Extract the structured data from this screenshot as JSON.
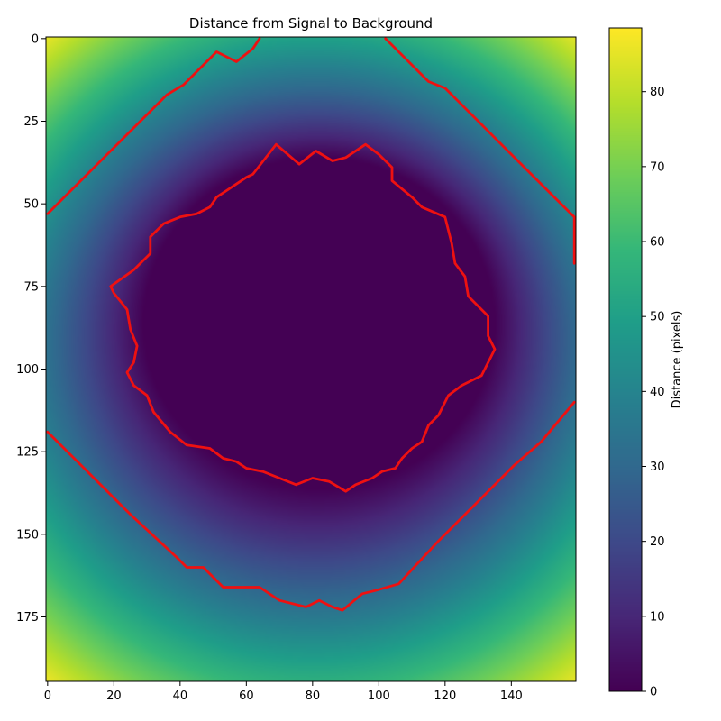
{
  "chart_data": {
    "type": "heatmap",
    "title": "Distance from Signal to Background",
    "xlabel": "",
    "ylabel": "",
    "xlim": [
      -0.5,
      159.5
    ],
    "ylim": [
      194.5,
      -0.5
    ],
    "image_shape": [
      195,
      160
    ],
    "x_ticks": [
      0,
      20,
      40,
      60,
      80,
      100,
      120,
      140
    ],
    "y_ticks": [
      0,
      25,
      50,
      75,
      100,
      125,
      150,
      175
    ],
    "grid": false,
    "colormap": "viridis",
    "colorbar": {
      "label": "Distance (pixels)",
      "range": [
        0,
        88.5
      ],
      "ticks": [
        0,
        10,
        20,
        30,
        40,
        50,
        60,
        70,
        80
      ]
    },
    "distance_field": {
      "inner_center": [
        82,
        86
      ],
      "inner_radius_x": 53,
      "inner_radius_y": 50,
      "inner_growth": 1.0,
      "outer_center": [
        80,
        97
      ],
      "outer_max": 88.5
    },
    "contour_color": "#ee1111",
    "contours": [
      {
        "name": "inner boundary",
        "points": [
          [
            69,
            32
          ],
          [
            76,
            38
          ],
          [
            81,
            34
          ],
          [
            86,
            37
          ],
          [
            90,
            36
          ],
          [
            96,
            32
          ],
          [
            100,
            35
          ],
          [
            104,
            39
          ],
          [
            104,
            43
          ],
          [
            110,
            48
          ],
          [
            113,
            51
          ],
          [
            120,
            54
          ],
          [
            122,
            62
          ],
          [
            123,
            68
          ],
          [
            126,
            72
          ],
          [
            127,
            78
          ],
          [
            133,
            84
          ],
          [
            133,
            90
          ],
          [
            135,
            94
          ],
          [
            131,
            102
          ],
          [
            125,
            105
          ],
          [
            121,
            108
          ],
          [
            118,
            114
          ],
          [
            115,
            117
          ],
          [
            113,
            122
          ],
          [
            110,
            124
          ],
          [
            107,
            127
          ],
          [
            105,
            130
          ],
          [
            101,
            131
          ],
          [
            98,
            133
          ],
          [
            93,
            135
          ],
          [
            90,
            137
          ],
          [
            85,
            134
          ],
          [
            80,
            133
          ],
          [
            75,
            135
          ],
          [
            70,
            133
          ],
          [
            65,
            131
          ],
          [
            60,
            130
          ],
          [
            57,
            128
          ],
          [
            53,
            127
          ],
          [
            49,
            124
          ],
          [
            42,
            123
          ],
          [
            37,
            119
          ],
          [
            32,
            113
          ],
          [
            30,
            108
          ],
          [
            26,
            105
          ],
          [
            24,
            101
          ],
          [
            26,
            98
          ],
          [
            27,
            93
          ],
          [
            25,
            88
          ],
          [
            24,
            82
          ],
          [
            20,
            77
          ],
          [
            19,
            75
          ],
          [
            26,
            70
          ],
          [
            28,
            68
          ],
          [
            31,
            65
          ],
          [
            31,
            60
          ],
          [
            35,
            56
          ],
          [
            40,
            54
          ],
          [
            45,
            53
          ],
          [
            49,
            51
          ],
          [
            51,
            48
          ],
          [
            54,
            46
          ],
          [
            60,
            42
          ],
          [
            62,
            41
          ],
          [
            69,
            32
          ]
        ]
      },
      {
        "name": "upper boundary",
        "points": [
          [
            0,
            53
          ],
          [
            12,
            41
          ],
          [
            22,
            31
          ],
          [
            36,
            17
          ],
          [
            41,
            14
          ],
          [
            51,
            4
          ],
          [
            57,
            7
          ],
          [
            62,
            3
          ],
          [
            64,
            0
          ]
        ]
      },
      {
        "name": "upper-right boundary",
        "points": [
          [
            102,
            0
          ],
          [
            115,
            13
          ],
          [
            120,
            15
          ],
          [
            129,
            24
          ],
          [
            140,
            35
          ],
          [
            152,
            47
          ],
          [
            159,
            54
          ],
          [
            159,
            68
          ]
        ]
      },
      {
        "name": "lower boundary",
        "points": [
          [
            0,
            119
          ],
          [
            11,
            130
          ],
          [
            25,
            144
          ],
          [
            39,
            157
          ],
          [
            42,
            160
          ],
          [
            47,
            160
          ],
          [
            53,
            166
          ],
          [
            60,
            166
          ],
          [
            64,
            166
          ],
          [
            70,
            170
          ],
          [
            78,
            172
          ],
          [
            82,
            170
          ],
          [
            86,
            172
          ],
          [
            89,
            173
          ],
          [
            95,
            168
          ],
          [
            99,
            167
          ],
          [
            106,
            165
          ],
          [
            118,
            152
          ],
          [
            130,
            140
          ],
          [
            141,
            129
          ],
          [
            149,
            122
          ],
          [
            159,
            110
          ]
        ]
      }
    ]
  }
}
